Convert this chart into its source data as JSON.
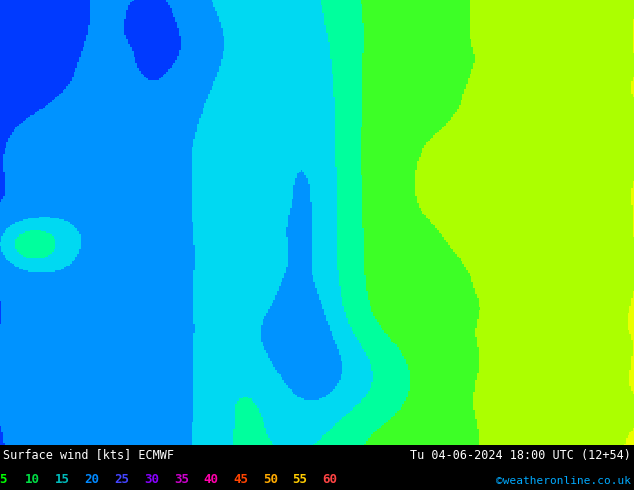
{
  "title_left": "Surface wind [kts] ECMWF",
  "title_right": "Tu 04-06-2024 18:00 UTC (12+54)",
  "credit": "©weatheronline.co.uk",
  "legend_values": [
    5,
    10,
    15,
    20,
    25,
    30,
    35,
    40,
    45,
    50,
    55,
    60
  ],
  "legend_colors_actual": [
    "#00ff00",
    "#00dd44",
    "#00bbbb",
    "#0088ff",
    "#4444ff",
    "#8800ff",
    "#cc00cc",
    "#ff00aa",
    "#ff4400",
    "#ffaa00",
    "#ffcc00",
    "#ff4444"
  ],
  "background_color": "#000000",
  "fig_width": 6.34,
  "fig_height": 4.9,
  "dpi": 100,
  "colormap_colors": [
    "#0000cc",
    "#0033ff",
    "#0088ff",
    "#00ccff",
    "#00ffcc",
    "#00ff44",
    "#88ff00",
    "#ccff00",
    "#ffff00",
    "#ffcc00",
    "#ff8800",
    "#ff4400",
    "#ff0000"
  ],
  "colormap_bounds": [
    0,
    5,
    10,
    15,
    20,
    25,
    30,
    35,
    40,
    45,
    50,
    55,
    60
  ],
  "lon_min": -5.0,
  "lon_max": 35.0,
  "lat_min": 54.0,
  "lat_max": 72.0,
  "text_color": "#ffffff",
  "map_sea_color": "#aaddff"
}
